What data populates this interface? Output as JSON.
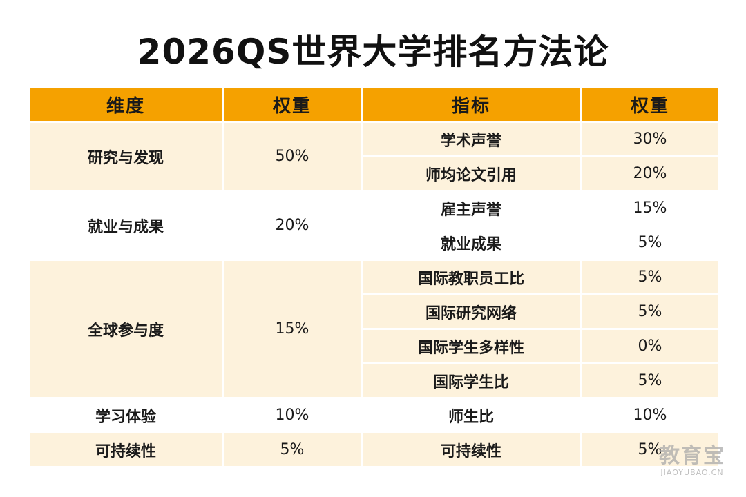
{
  "title": "2026QS世界大学排名方法论",
  "headers": {
    "dimension": "维度",
    "dimension_weight": "权重",
    "indicator": "指标",
    "indicator_weight": "权重"
  },
  "rows": [
    {
      "dimension": "研究与发现",
      "dimension_weight": "50%",
      "indicator": "学术声誉",
      "indicator_weight": "30%"
    },
    {
      "indicator": "师均论文引用",
      "indicator_weight": "20%"
    },
    {
      "dimension": "就业与成果",
      "dimension_weight": "20%",
      "indicator": "雇主声誉",
      "indicator_weight": "15%"
    },
    {
      "indicator": "就业成果",
      "indicator_weight": "5%"
    },
    {
      "dimension": "全球参与度",
      "dimension_weight": "15%",
      "indicator": "国际教职员工比",
      "indicator_weight": "5%"
    },
    {
      "indicator": "国际研究网络",
      "indicator_weight": "5%"
    },
    {
      "indicator": "国际学生多样性",
      "indicator_weight": "0%"
    },
    {
      "indicator": "国际学生比",
      "indicator_weight": "5%"
    },
    {
      "dimension": "学习体验",
      "dimension_weight": "10%",
      "indicator": "师生比",
      "indicator_weight": "10%"
    },
    {
      "dimension": "可持续性",
      "dimension_weight": "5%",
      "indicator": "可持续性",
      "indicator_weight": "5%"
    }
  ],
  "watermark": {
    "main": "教育宝",
    "sub": "JIAOYUBAO.CN"
  },
  "colors": {
    "header_bg": "#f5a100",
    "band_a": "#fdf2dc",
    "band_b": "#ffffff"
  }
}
